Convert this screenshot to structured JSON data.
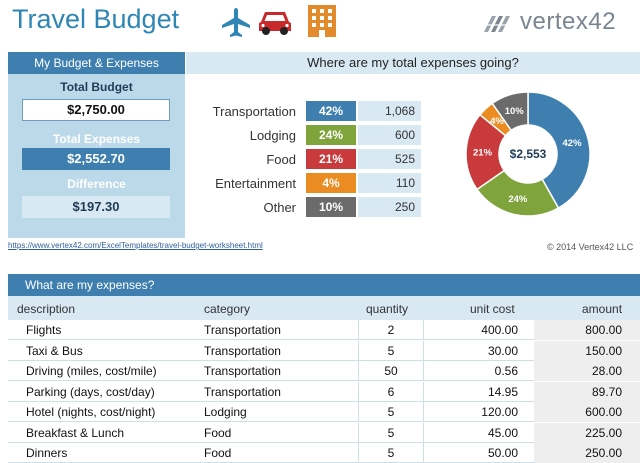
{
  "header": {
    "title": "Travel Budget",
    "brand": "vertex42"
  },
  "colors": {
    "blue": "#3e7fb0",
    "green": "#7fa43c",
    "red": "#c83a3c",
    "orange": "#ea8c22",
    "gray": "#6b6b6b",
    "icon_blue": "#2f86b5",
    "icon_red": "#c8292b",
    "icon_orange": "#e28a2c"
  },
  "icons": [
    "airplane-icon",
    "car-icon",
    "building-icon"
  ],
  "budget": {
    "panel_title": "My Budget & Expenses",
    "total_budget_label": "Total Budget",
    "total_budget_value": "$2,750.00",
    "total_expenses_label": "Total Expenses",
    "total_expenses_value": "$2,552.70",
    "difference_label": "Difference",
    "difference_value": "$197.30"
  },
  "summary": {
    "title": "Where are my total expenses going?",
    "rows": [
      {
        "label": "Transportation",
        "pct": "42%",
        "value": "1,068"
      },
      {
        "label": "Lodging",
        "pct": "24%",
        "value": "600"
      },
      {
        "label": "Food",
        "pct": "21%",
        "value": "525"
      },
      {
        "label": "Entertainment",
        "pct": "4%",
        "value": "110"
      },
      {
        "label": "Other",
        "pct": "10%",
        "value": "250"
      }
    ]
  },
  "chart_data": {
    "type": "pie",
    "title": "",
    "center_label": "$2,553",
    "categories": [
      "Transportation",
      "Lodging",
      "Food",
      "Entertainment",
      "Other"
    ],
    "values": [
      1068,
      600,
      525,
      110,
      250
    ],
    "labels": [
      "42%",
      "24%",
      "21%",
      "4%",
      "10%"
    ]
  },
  "footer": {
    "link": "https://www.vertex42.com/ExcelTemplates/travel-budget-worksheet.html",
    "copyright": "© 2014 Vertex42 LLC"
  },
  "expenses": {
    "title": "What are my expenses?",
    "columns": [
      "description",
      "category",
      "quantity",
      "unit cost",
      "amount"
    ],
    "rows": [
      {
        "description": "Flights",
        "category": "Transportation",
        "quantity": "2",
        "unit_cost": "400.00",
        "amount": "800.00"
      },
      {
        "description": "Taxi & Bus",
        "category": "Transportation",
        "quantity": "5",
        "unit_cost": "30.00",
        "amount": "150.00"
      },
      {
        "description": "Driving (miles, cost/mile)",
        "category": "Transportation",
        "quantity": "50",
        "unit_cost": "0.56",
        "amount": "28.00"
      },
      {
        "description": "Parking (days, cost/day)",
        "category": "Transportation",
        "quantity": "6",
        "unit_cost": "14.95",
        "amount": "89.70"
      },
      {
        "description": "Hotel (nights, cost/night)",
        "category": "Lodging",
        "quantity": "5",
        "unit_cost": "120.00",
        "amount": "600.00"
      },
      {
        "description": "Breakfast & Lunch",
        "category": "Food",
        "quantity": "5",
        "unit_cost": "45.00",
        "amount": "225.00"
      },
      {
        "description": "Dinners",
        "category": "Food",
        "quantity": "5",
        "unit_cost": "50.00",
        "amount": "250.00"
      }
    ]
  }
}
